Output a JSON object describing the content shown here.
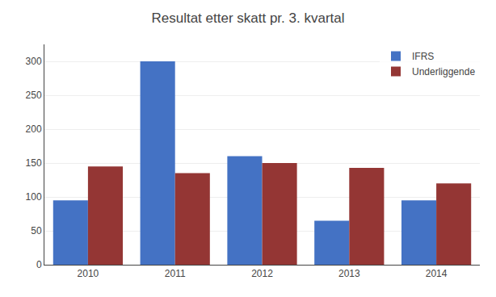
{
  "chart_data": {
    "type": "bar",
    "title": "Resultat etter skatt pr. 3. kvartal",
    "categories": [
      "2010",
      "2011",
      "2012",
      "2013",
      "2014"
    ],
    "series": [
      {
        "name": "IFRS",
        "color": "#4472C4",
        "values": [
          95,
          300,
          160,
          65,
          95
        ]
      },
      {
        "name": "Underliggende",
        "color": "#943634",
        "values": [
          145,
          135,
          150,
          143,
          120
        ]
      }
    ],
    "ylim": [
      0,
      325
    ],
    "yticks": [
      0,
      50,
      100,
      150,
      200,
      250,
      300
    ],
    "grid": true,
    "legend": "upper right"
  }
}
